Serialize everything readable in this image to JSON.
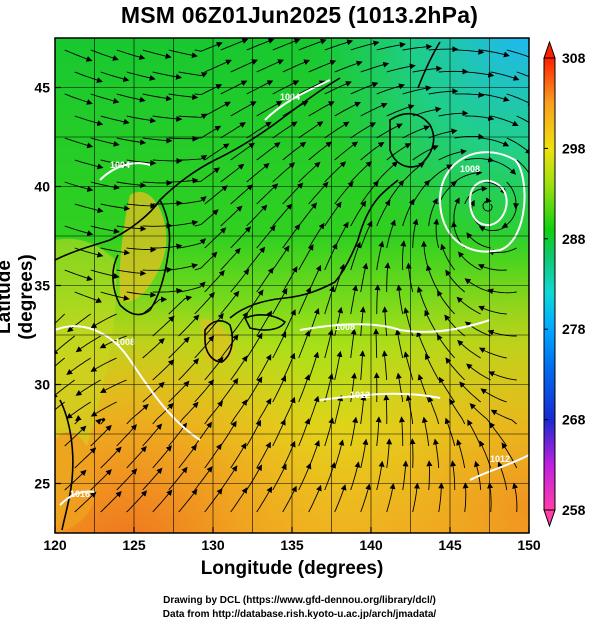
{
  "title": "MSM 06Z01Jun2025 (1013.2hPa)",
  "axes": {
    "xlabel": "Longitude (degrees)",
    "ylabel": "Latitude (degrees)",
    "x_range": [
      120,
      150
    ],
    "y_range": [
      22.5,
      47.5
    ],
    "x_ticks": [
      "120",
      "125",
      "130",
      "135",
      "140",
      "145",
      "150"
    ],
    "y_ticks": [
      "25",
      "30",
      "35",
      "40",
      "45"
    ],
    "grid": true
  },
  "colorbar": {
    "range": [
      258,
      308
    ],
    "ticks": [
      "308",
      "298",
      "288",
      "278",
      "268",
      "258"
    ],
    "colors": [
      "#ff3ea8",
      "#c020e0",
      "#1a2ad0",
      "#00a8ff",
      "#10d8d8",
      "#10c870",
      "#10d010",
      "#9ce010",
      "#f0e010",
      "#f8a020",
      "#ff2000"
    ]
  },
  "contour_labels": [
    "1004",
    "1004",
    "1008",
    "1008",
    "1008",
    "1012",
    "1012",
    "1016"
  ],
  "credits": {
    "line1": "Drawing by DCL (https://www.gfd-dennou.org/library/dcl/)",
    "line2": "Data from http://database.rish.kyoto-u.ac.jp/arch/jmadata/"
  }
}
